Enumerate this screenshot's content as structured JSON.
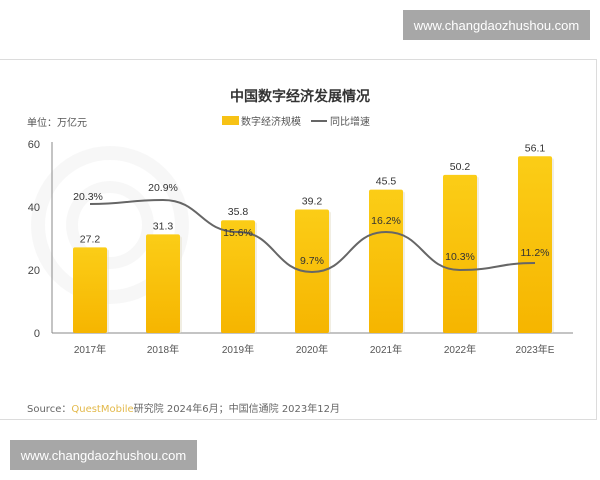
{
  "watermarks": {
    "top": "www.changdaozhushou.com",
    "bottom": "www.changdaozhushou.com"
  },
  "header": {
    "title": "中国数字经济发展情况",
    "unit": "单位：万亿元",
    "legend": {
      "bar": "数字经济规模",
      "line": "同比增速"
    }
  },
  "source": {
    "prefix": "Source：",
    "brand": "QuestMobile",
    "rest": "研究院 2024年6月；中国信通院 2023年12月"
  },
  "colors": {
    "bar": "#f7c215",
    "bar_dark": "#f5b400",
    "line": "#666666",
    "brand": "#e3b94a"
  },
  "chart_data": {
    "type": "bar",
    "title": "中国数字经济发展情况",
    "xlabel": "",
    "ylabel": "单位：万亿元",
    "ylim": [
      0,
      60
    ],
    "yticks": [
      0,
      20,
      40,
      60
    ],
    "categories": [
      "2017年",
      "2018年",
      "2019年",
      "2020年",
      "2021年",
      "2022年",
      "2023年E"
    ],
    "series": [
      {
        "name": "数字经济规模",
        "type": "bar",
        "values": [
          27.2,
          31.3,
          35.8,
          39.2,
          45.5,
          50.2,
          56.1
        ],
        "labels": [
          "27.2",
          "31.3",
          "35.8",
          "39.2",
          "45.5",
          "50.2",
          "56.1"
        ]
      },
      {
        "name": "同比增速",
        "type": "line",
        "unit": "%",
        "values": [
          20.3,
          20.9,
          15.6,
          9.7,
          16.2,
          10.3,
          11.2
        ],
        "labels": [
          "20.3%",
          "20.9%",
          "15.6%",
          "9.7%",
          "16.2%",
          "10.3%",
          "11.2%"
        ]
      }
    ],
    "legend_position": "top",
    "grid": false
  }
}
